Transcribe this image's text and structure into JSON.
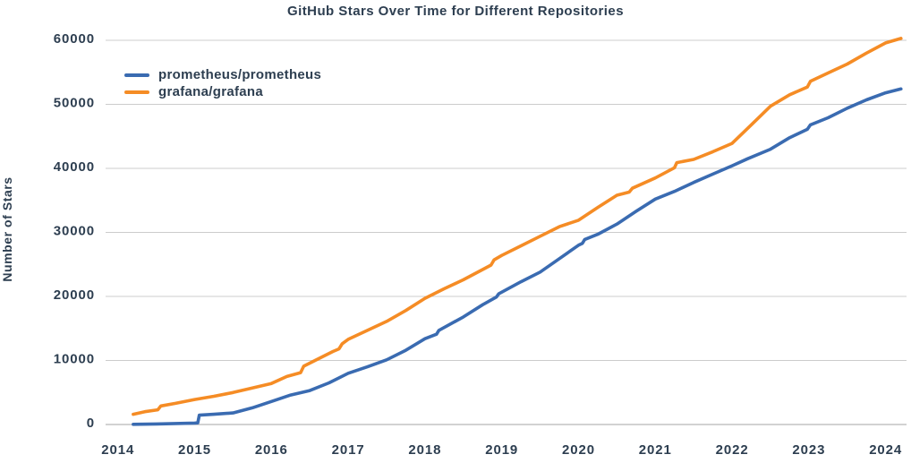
{
  "chart_data": {
    "type": "line",
    "title": "GitHub Stars Over Time for Different Repositories",
    "xlabel": "",
    "ylabel": "Number of Stars",
    "x_tick_labels": [
      "2014",
      "2015",
      "2016",
      "2017",
      "2018",
      "2019",
      "2020",
      "2021",
      "2022",
      "2023",
      "2024"
    ],
    "x_tick_values": [
      2014,
      2015,
      2016,
      2017,
      2018,
      2019,
      2020,
      2021,
      2022,
      2023,
      2024
    ],
    "y_tick_labels": [
      "0",
      "10000",
      "20000",
      "30000",
      "40000",
      "50000",
      "60000"
    ],
    "y_tick_values": [
      0,
      10000,
      20000,
      30000,
      40000,
      50000,
      60000
    ],
    "xlim": [
      2013.84,
      2024.33
    ],
    "ylim": [
      0,
      60000
    ],
    "grid": "horizontal-only",
    "legend_position": "top-left-inside",
    "colors": {
      "text": "#2d3e50",
      "gridline": "#cccccc",
      "axis_line": "#a6a6a6",
      "prometheus_line": "#3a6bb1",
      "grafana_line": "#f58c25"
    },
    "series": [
      {
        "name": "prometheus/prometheus",
        "color": "#3a6bb1",
        "points": [
          [
            2014.2,
            30
          ],
          [
            2014.5,
            90
          ],
          [
            2014.75,
            150
          ],
          [
            2015.0,
            230
          ],
          [
            2015.04,
            250
          ],
          [
            2015.06,
            1450
          ],
          [
            2015.25,
            1600
          ],
          [
            2015.5,
            1800
          ],
          [
            2015.75,
            2600
          ],
          [
            2016.0,
            3600
          ],
          [
            2016.25,
            4600
          ],
          [
            2016.5,
            5300
          ],
          [
            2016.75,
            6500
          ],
          [
            2017.0,
            8000
          ],
          [
            2017.25,
            9000
          ],
          [
            2017.5,
            10100
          ],
          [
            2017.75,
            11600
          ],
          [
            2018.0,
            13400
          ],
          [
            2018.15,
            14100
          ],
          [
            2018.18,
            14700
          ],
          [
            2018.5,
            16800
          ],
          [
            2018.75,
            18700
          ],
          [
            2018.93,
            19900
          ],
          [
            2018.96,
            20400
          ],
          [
            2019.25,
            22300
          ],
          [
            2019.5,
            23800
          ],
          [
            2019.75,
            25900
          ],
          [
            2020.0,
            28000
          ],
          [
            2020.05,
            28300
          ],
          [
            2020.08,
            28900
          ],
          [
            2020.25,
            29700
          ],
          [
            2020.5,
            31300
          ],
          [
            2020.75,
            33300
          ],
          [
            2021.0,
            35200
          ],
          [
            2021.25,
            36400
          ],
          [
            2021.5,
            37800
          ],
          [
            2021.75,
            39100
          ],
          [
            2022.0,
            40400
          ],
          [
            2022.2,
            41500
          ],
          [
            2022.5,
            43000
          ],
          [
            2022.75,
            44800
          ],
          [
            2022.98,
            46100
          ],
          [
            2023.02,
            46800
          ],
          [
            2023.25,
            47900
          ],
          [
            2023.5,
            49400
          ],
          [
            2023.75,
            50700
          ],
          [
            2024.0,
            51800
          ],
          [
            2024.2,
            52400
          ]
        ]
      },
      {
        "name": "grafana/grafana",
        "color": "#f58c25",
        "points": [
          [
            2014.2,
            1600
          ],
          [
            2014.35,
            2000
          ],
          [
            2014.52,
            2300
          ],
          [
            2014.56,
            2900
          ],
          [
            2014.75,
            3300
          ],
          [
            2015.0,
            3900
          ],
          [
            2015.25,
            4400
          ],
          [
            2015.5,
            5000
          ],
          [
            2015.75,
            5700
          ],
          [
            2016.0,
            6400
          ],
          [
            2016.2,
            7500
          ],
          [
            2016.38,
            8100
          ],
          [
            2016.42,
            9100
          ],
          [
            2016.6,
            10200
          ],
          [
            2016.8,
            11400
          ],
          [
            2016.88,
            11800
          ],
          [
            2016.92,
            12600
          ],
          [
            2017.0,
            13300
          ],
          [
            2017.25,
            14700
          ],
          [
            2017.5,
            16100
          ],
          [
            2017.75,
            17800
          ],
          [
            2018.0,
            19700
          ],
          [
            2018.25,
            21200
          ],
          [
            2018.5,
            22600
          ],
          [
            2018.75,
            24200
          ],
          [
            2018.86,
            24900
          ],
          [
            2018.9,
            25700
          ],
          [
            2019.0,
            26400
          ],
          [
            2019.25,
            27900
          ],
          [
            2019.5,
            29400
          ],
          [
            2019.75,
            30900
          ],
          [
            2020.0,
            31900
          ],
          [
            2020.25,
            33900
          ],
          [
            2020.5,
            35800
          ],
          [
            2020.66,
            36300
          ],
          [
            2020.7,
            36900
          ],
          [
            2021.0,
            38500
          ],
          [
            2021.25,
            40100
          ],
          [
            2021.28,
            40900
          ],
          [
            2021.5,
            41400
          ],
          [
            2021.75,
            42600
          ],
          [
            2022.0,
            43900
          ],
          [
            2022.25,
            46800
          ],
          [
            2022.5,
            49700
          ],
          [
            2022.75,
            51500
          ],
          [
            2022.98,
            52700
          ],
          [
            2023.02,
            53600
          ],
          [
            2023.25,
            54900
          ],
          [
            2023.5,
            56300
          ],
          [
            2023.75,
            58000
          ],
          [
            2024.0,
            59600
          ],
          [
            2024.2,
            60300
          ]
        ]
      }
    ]
  }
}
